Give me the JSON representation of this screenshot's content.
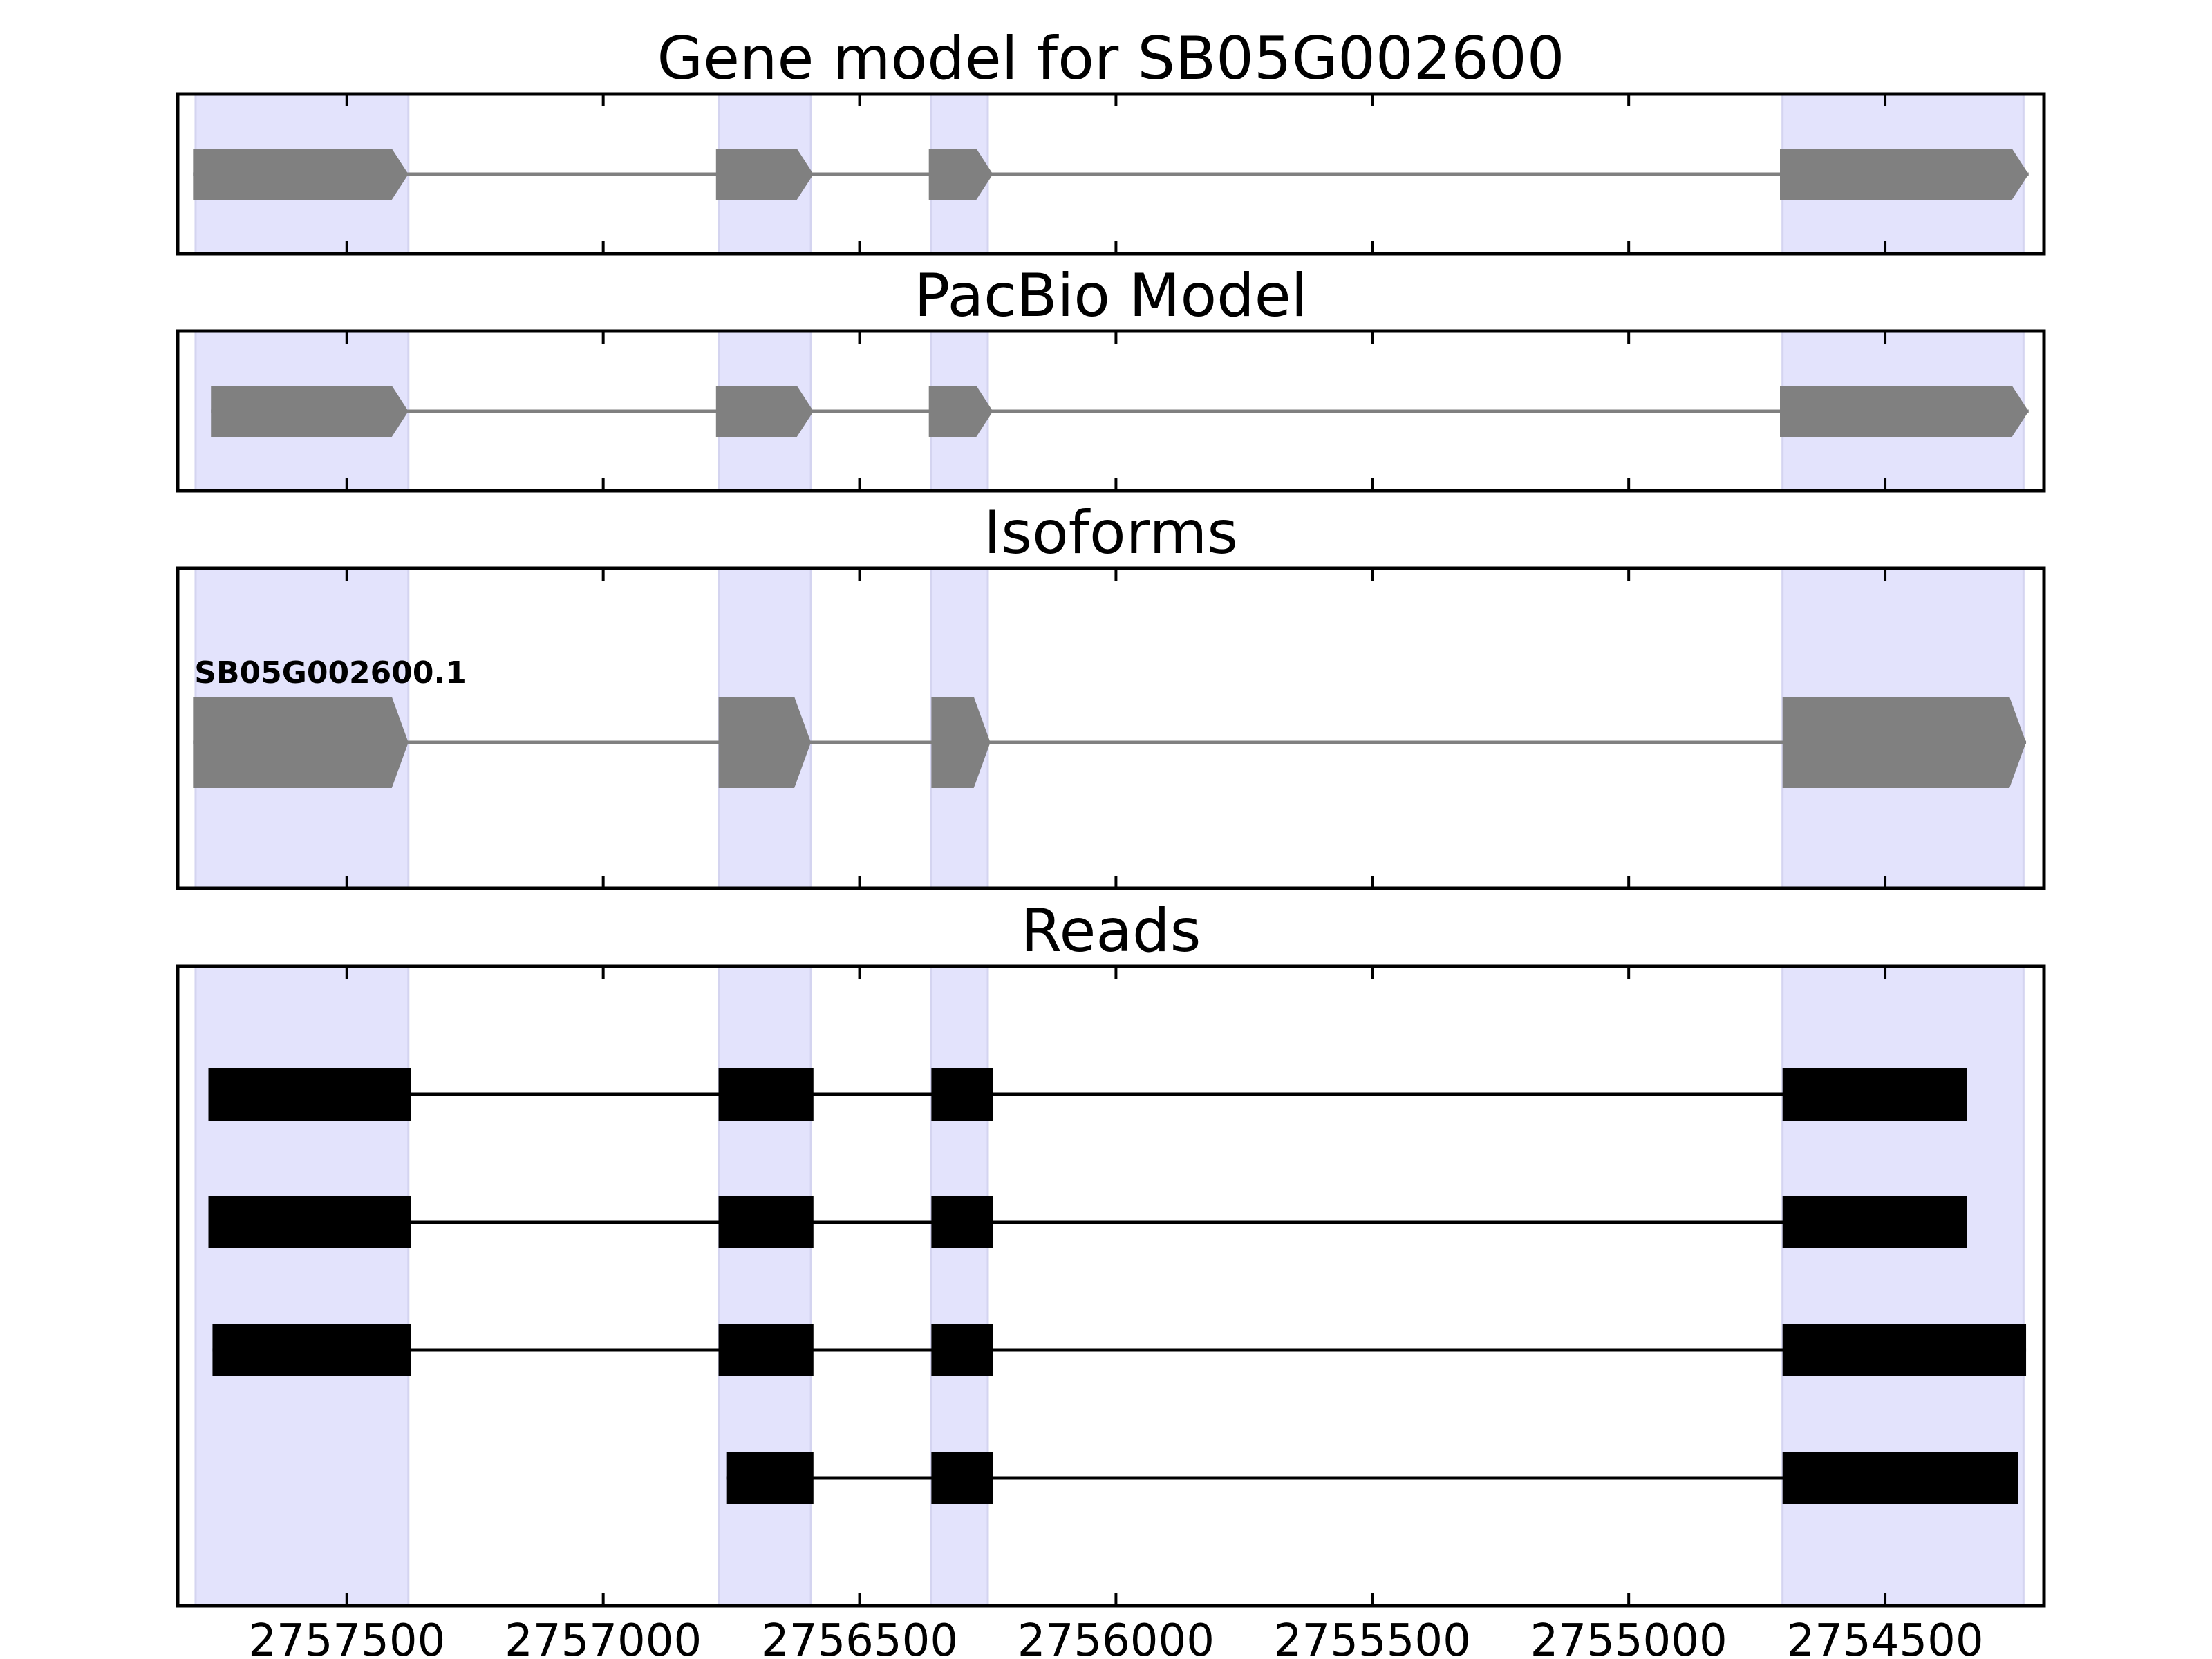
{
  "chart_data": {
    "type": "gene_structure",
    "xlim": [
      2757830,
      2754190
    ],
    "x_ticks": [
      2757500,
      2757000,
      2756500,
      2756000,
      2755500,
      2755000,
      2754500
    ],
    "x_tick_labels": [
      "2757500",
      "2757000",
      "2756500",
      "2756000",
      "2755500",
      "2755000",
      "2754500"
    ],
    "x_reversed": true,
    "highlight_color": "#e3e3fc",
    "exon_color": "#808080",
    "read_color": "#000000",
    "intron_color_model": "#808080",
    "intron_color_read": "#000000",
    "highlight_regions": [
      [
        2757795,
        2757380
      ],
      [
        2756775,
        2756595
      ],
      [
        2756360,
        2756250
      ],
      [
        2754700,
        2754230
      ]
    ],
    "panels": [
      {
        "title": "Gene model for SB05G002600",
        "track_kind": "model",
        "tracks": [
          {
            "label": "",
            "exons": [
              [
                2757800,
                2757380
              ],
              [
                2756780,
                2756590
              ],
              [
                2756365,
                2756240
              ],
              [
                2754705,
                2754220
              ]
            ]
          }
        ]
      },
      {
        "title": "PacBio Model",
        "track_kind": "model",
        "tracks": [
          {
            "label": "",
            "exons": [
              [
                2757765,
                2757380
              ],
              [
                2756780,
                2756590
              ],
              [
                2756365,
                2756240
              ],
              [
                2754705,
                2754220
              ]
            ]
          }
        ]
      },
      {
        "title": "Isoforms",
        "track_kind": "model",
        "tracks": [
          {
            "label": "SB05G002600.1",
            "exons": [
              [
                2757800,
                2757380
              ],
              [
                2756775,
                2756595
              ],
              [
                2756360,
                2756245
              ],
              [
                2754700,
                2754225
              ]
            ]
          }
        ]
      },
      {
        "title": "Reads",
        "track_kind": "read",
        "tracks": [
          {
            "label": "",
            "exons": [
              [
                2757770,
                2757375
              ],
              [
                2756775,
                2756590
              ],
              [
                2756360,
                2756240
              ],
              [
                2754700,
                2754340
              ]
            ]
          },
          {
            "label": "",
            "exons": [
              [
                2757770,
                2757375
              ],
              [
                2756775,
                2756590
              ],
              [
                2756360,
                2756240
              ],
              [
                2754700,
                2754340
              ]
            ]
          },
          {
            "label": "",
            "exons": [
              [
                2757762,
                2757375
              ],
              [
                2756775,
                2756590
              ],
              [
                2756360,
                2756240
              ],
              [
                2754700,
                2754225
              ]
            ]
          },
          {
            "label": "",
            "exons": [
              [
                2756760,
                2756590
              ],
              [
                2756360,
                2756240
              ],
              [
                2754700,
                2754240
              ]
            ]
          }
        ]
      }
    ]
  }
}
